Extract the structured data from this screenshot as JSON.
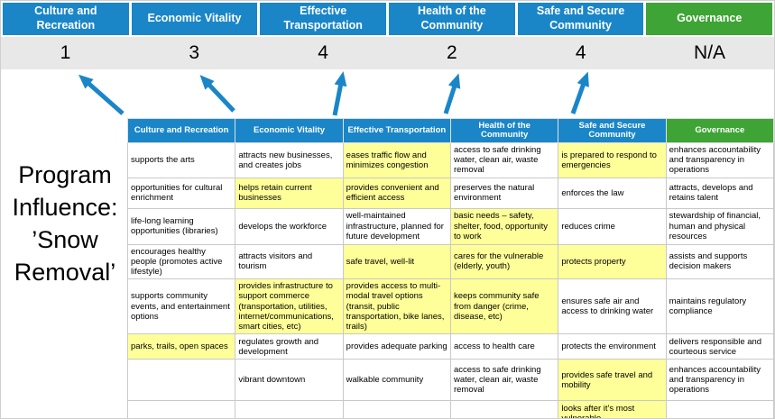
{
  "colors": {
    "header_blue": "#1a86c8",
    "governance_green": "#3ea435",
    "highlight_yellow": "#ffff99",
    "score_band_gray": "#e8e8e8",
    "arrow_blue": "#1a86c8"
  },
  "program_label": "Program Influence: ’Snow Removal’",
  "scoreboard": {
    "columns": [
      {
        "label": "Culture and Recreation",
        "score": "1",
        "theme": "blue"
      },
      {
        "label": "Economic Vitality",
        "score": "3",
        "theme": "blue"
      },
      {
        "label": "Effective Transportation",
        "score": "4",
        "theme": "blue"
      },
      {
        "label": "Health of the Community",
        "score": "2",
        "theme": "blue"
      },
      {
        "label": "Safe and Secure Community",
        "score": "4",
        "theme": "blue"
      },
      {
        "label": "Governance",
        "score": "N/A",
        "theme": "green"
      }
    ]
  },
  "table": {
    "headers": [
      {
        "label": "Culture and Recreation",
        "theme": "blue"
      },
      {
        "label": "Economic Vitality",
        "theme": "blue"
      },
      {
        "label": "Effective Transportation",
        "theme": "blue"
      },
      {
        "label": "Health of the Community",
        "theme": "blue"
      },
      {
        "label": "Safe and Secure Community",
        "theme": "blue"
      },
      {
        "label": "Governance",
        "theme": "green"
      }
    ],
    "rows": [
      [
        {
          "text": "supports the arts",
          "highlight": false
        },
        {
          "text": "attracts new businesses, and creates jobs",
          "highlight": false
        },
        {
          "text": "eases traffic flow and minimizes congestion",
          "highlight": true
        },
        {
          "text": "access to safe drinking water, clean air, waste removal",
          "highlight": false
        },
        {
          "text": "is prepared to respond to emergencies",
          "highlight": true
        },
        {
          "text": "enhances accountability and transparency in operations",
          "highlight": false
        }
      ],
      [
        {
          "text": "opportunities for cultural enrichment",
          "highlight": false
        },
        {
          "text": "helps retain current businesses",
          "highlight": true
        },
        {
          "text": "provides convenient and efficient access",
          "highlight": true
        },
        {
          "text": "preserves the natural environment",
          "highlight": false
        },
        {
          "text": "enforces the law",
          "highlight": false
        },
        {
          "text": "attracts, develops and retains talent",
          "highlight": false
        }
      ],
      [
        {
          "text": "life-long learning opportunities (libraries)",
          "highlight": false
        },
        {
          "text": "develops the workforce",
          "highlight": false
        },
        {
          "text": "well-maintained infrastructure, planned for future development",
          "highlight": false
        },
        {
          "text": "basic needs – safety, shelter, food, opportunity to work",
          "highlight": true
        },
        {
          "text": "reduces crime",
          "highlight": false
        },
        {
          "text": "stewardship of financial, human and physical resources",
          "highlight": false
        }
      ],
      [
        {
          "text": "encourages healthy people (promotes active lifestyle)",
          "highlight": false
        },
        {
          "text": "attracts visitors and tourism",
          "highlight": false
        },
        {
          "text": "safe travel, well-lit",
          "highlight": true
        },
        {
          "text": "cares for the vulnerable (elderly, youth)",
          "highlight": true
        },
        {
          "text": "protects property",
          "highlight": true
        },
        {
          "text": "assists and supports decision makers",
          "highlight": false
        }
      ],
      [
        {
          "text": "supports community events, and entertainment options",
          "highlight": false
        },
        {
          "text": "provides infrastructure to support commerce (transportation, utilities, internet/communications, smart cities, etc)",
          "highlight": true
        },
        {
          "text": "provides access to multi-modal travel options (transit, public transportation, bike lanes, trails)",
          "highlight": true
        },
        {
          "text": "keeps community safe from danger (crime, disease, etc)",
          "highlight": true
        },
        {
          "text": "ensures safe air and access to drinking water",
          "highlight": false
        },
        {
          "text": "maintains regulatory compliance",
          "highlight": false
        }
      ],
      [
        {
          "text": "parks, trails, open spaces",
          "highlight": true
        },
        {
          "text": "regulates growth and development",
          "highlight": false
        },
        {
          "text": "provides adequate parking",
          "highlight": false
        },
        {
          "text": "access to health care",
          "highlight": false
        },
        {
          "text": "protects the environment",
          "highlight": false
        },
        {
          "text": "delivers responsible and courteous service",
          "highlight": false
        }
      ],
      [
        {
          "text": "",
          "highlight": false
        },
        {
          "text": "vibrant downtown",
          "highlight": false
        },
        {
          "text": "walkable community",
          "highlight": false
        },
        {
          "text": "access to safe drinking water, clean air, waste removal",
          "highlight": false
        },
        {
          "text": "provides safe travel and mobility",
          "highlight": true
        },
        {
          "text": "enhances accountability and transparency in operations",
          "highlight": false
        }
      ],
      [
        {
          "text": "",
          "highlight": false
        },
        {
          "text": "",
          "highlight": false
        },
        {
          "text": "",
          "highlight": false
        },
        {
          "text": "",
          "highlight": false
        },
        {
          "text": "looks after it's most vulnerable",
          "highlight": true
        },
        {
          "text": "",
          "highlight": false
        }
      ]
    ]
  }
}
